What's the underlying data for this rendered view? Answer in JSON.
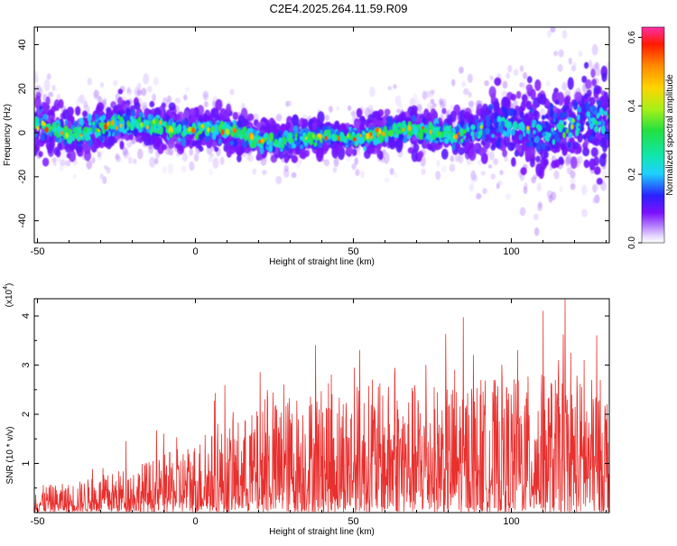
{
  "title": "C2E4.2025.264.11.59.R09",
  "chart_data": [
    {
      "type": "heatmap",
      "xlabel": "Height of straight line (km)",
      "ylabel": "Frequency (Hz)",
      "xlim": [
        -51,
        131
      ],
      "ylim": [
        -50,
        48
      ],
      "xticks": [
        -50,
        0,
        50,
        100
      ],
      "yticks": [
        -40,
        -20,
        0,
        20,
        40
      ],
      "colorbar": {
        "label": "Normalized spectral amplitude",
        "range": [
          0,
          0.63
        ],
        "ticks": [
          "0.0",
          "0.2",
          "0.4",
          "0.6"
        ]
      },
      "band_center_hz": [
        [
          -50,
          3
        ],
        [
          -40,
          0
        ],
        [
          -30,
          2
        ],
        [
          -20,
          3
        ],
        [
          -10,
          4
        ],
        [
          0,
          1
        ],
        [
          10,
          0
        ],
        [
          20,
          -2
        ],
        [
          30,
          -3
        ],
        [
          38,
          -4
        ],
        [
          45,
          -2
        ],
        [
          55,
          0
        ],
        [
          70,
          0
        ],
        [
          85,
          1
        ],
        [
          100,
          2
        ],
        [
          115,
          3
        ],
        [
          130,
          5
        ]
      ],
      "band_halfwidth_hz": [
        [
          -50,
          10
        ],
        [
          -20,
          8
        ],
        [
          0,
          7
        ],
        [
          40,
          6
        ],
        [
          80,
          8
        ],
        [
          100,
          14
        ],
        [
          130,
          18
        ]
      ]
    },
    {
      "type": "line",
      "xlabel": "Height of straight line (km)",
      "ylabel": "SNR (10 * v/v)",
      "y_exponent": "(x10^4)",
      "y_exponent_base": "(x10",
      "y_exponent_power": "4",
      "y_exponent_close": ")",
      "xlim": [
        -51,
        131
      ],
      "ylim": [
        0,
        4.35
      ],
      "xticks": [
        -50,
        0,
        50,
        100
      ],
      "yticks": [
        1,
        2,
        3,
        4
      ],
      "series_color": "#e8302e",
      "envelope": [
        [
          -50,
          0.5
        ],
        [
          -40,
          0.55
        ],
        [
          -30,
          0.7
        ],
        [
          -20,
          0.9
        ],
        [
          -10,
          1.1
        ],
        [
          0,
          1.4
        ],
        [
          10,
          1.7
        ],
        [
          20,
          2.0
        ],
        [
          30,
          2.3
        ],
        [
          40,
          2.5
        ],
        [
          50,
          2.5
        ],
        [
          60,
          2.5
        ],
        [
          70,
          2.5
        ],
        [
          80,
          2.5
        ],
        [
          90,
          2.6
        ],
        [
          100,
          2.6
        ],
        [
          110,
          2.7
        ],
        [
          120,
          2.6
        ],
        [
          130,
          2.6
        ]
      ],
      "peaks": [
        [
          -22,
          1.45
        ],
        [
          -10,
          1.6
        ],
        [
          7,
          1.8
        ],
        [
          22,
          2.3
        ],
        [
          28,
          2.6
        ],
        [
          38,
          3.4
        ],
        [
          43,
          2.8
        ],
        [
          52,
          3.3
        ],
        [
          56,
          2.7
        ],
        [
          63,
          2.8
        ],
        [
          73,
          3.0
        ],
        [
          82,
          2.9
        ],
        [
          88,
          3.2
        ],
        [
          97,
          3.0
        ],
        [
          102,
          3.3
        ],
        [
          110,
          4.1
        ],
        [
          115,
          3.1
        ],
        [
          117,
          4.35
        ],
        [
          123,
          3.1
        ],
        [
          127,
          3.6
        ]
      ]
    }
  ]
}
